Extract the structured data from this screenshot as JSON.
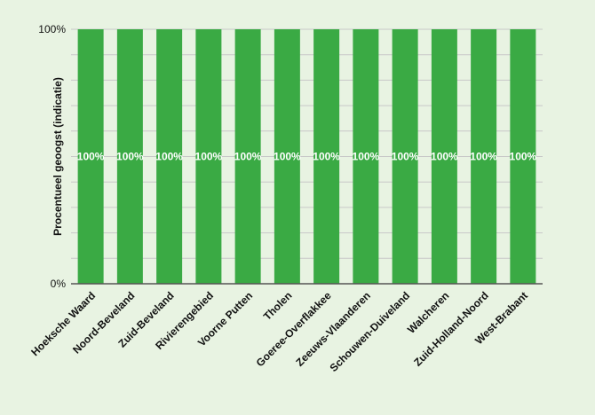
{
  "colors": {
    "background": "#e8f3e2",
    "bar": "#3aaa44",
    "grid": "#c8c8c8",
    "axis": "#555555",
    "value_label": "#ffffff"
  },
  "chart_data": {
    "type": "bar",
    "title": "",
    "xlabel": "",
    "ylabel": "Procentueel geoogst (indicatie)",
    "categories": [
      "Hoeksche Waard",
      "Noord-Beveland",
      "Zuid-Beveland",
      "Rivierengebied",
      "Voorne Putten",
      "Tholen",
      "Goeree-Overflakkee",
      "Zeeuws-Vlaanderen",
      "Schouwen-Duiveland",
      "Walcheren",
      "Zuid-Holland-Noord",
      "West-Brabant"
    ],
    "values": [
      100,
      100,
      100,
      100,
      100,
      100,
      100,
      100,
      100,
      100,
      100,
      100
    ],
    "value_labels": [
      "100%",
      "100%",
      "100%",
      "100%",
      "100%",
      "100%",
      "100%",
      "100%",
      "100%",
      "100%",
      "100%",
      "100%"
    ],
    "ylim": [
      0,
      100
    ],
    "yticks": [
      {
        "value": 0,
        "label": "0%"
      },
      {
        "value": 100,
        "label": "100%"
      }
    ],
    "gridlines": [
      0,
      10,
      20,
      30,
      40,
      50,
      60,
      70,
      80,
      90,
      100
    ],
    "grid": true,
    "legend": "none"
  }
}
